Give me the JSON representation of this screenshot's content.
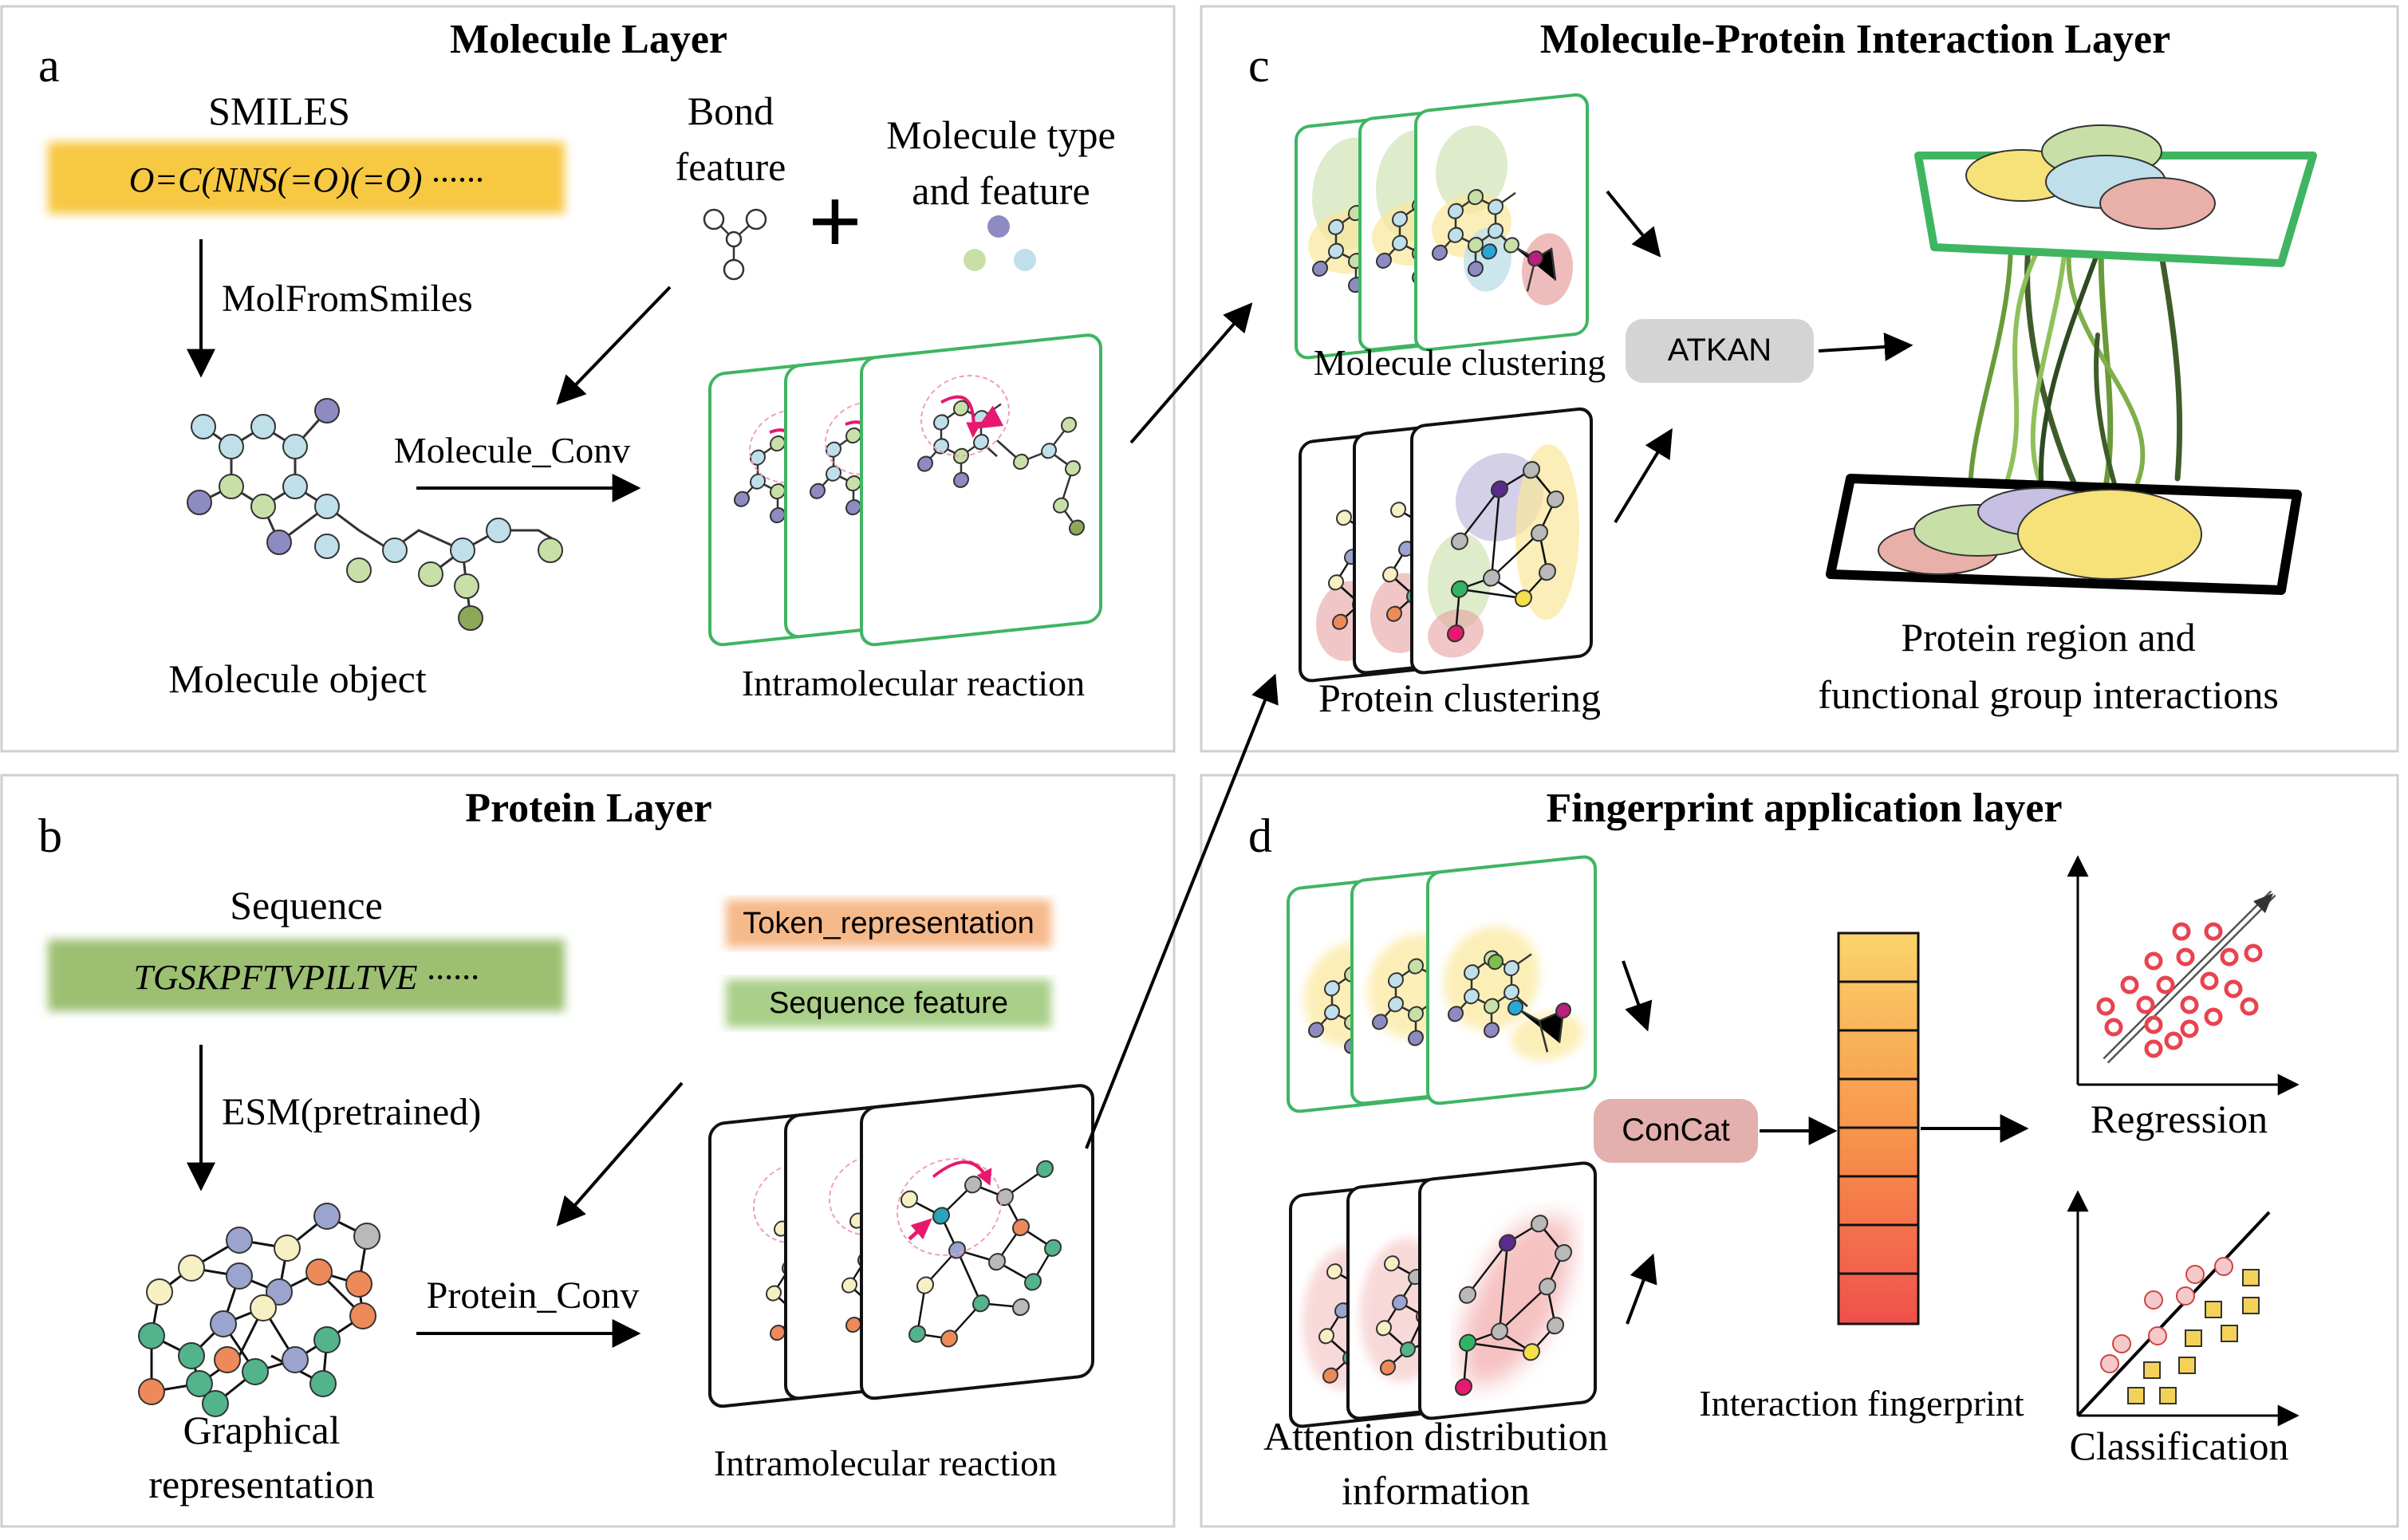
{
  "panels": {
    "a": {
      "letter": "a",
      "title": "Molecule Layer",
      "smiles_label": "SMILES",
      "smiles_value": "O=C(NNS(=O)(=O) ······",
      "molfromsmiles": "MolFromSmiles",
      "bond_feature_1": "Bond",
      "bond_feature_2": "feature",
      "plus": "+",
      "mol_type_1": "Molecule type",
      "mol_type_2": "and feature",
      "conv": "Molecule_Conv",
      "object": "Molecule object",
      "intramolecular": "Intramolecular reaction"
    },
    "b": {
      "letter": "b",
      "title": "Protein Layer",
      "sequence_label": "Sequence",
      "sequence_value": "TGSKPFTVPILTVE ······",
      "token": "Token_representation",
      "seq_feature": "Sequence feature",
      "esm": "ESM(pretrained)",
      "conv": "Protein_Conv",
      "graph_1": "Graphical",
      "graph_2": "representation",
      "intramolecular": "Intramolecular reaction"
    },
    "c": {
      "letter": "c",
      "title": "Molecule-Protein Interaction Layer",
      "mol_cluster": "Molecule clustering",
      "atkan": "ATKAN",
      "prot_cluster": "Protein clustering",
      "region_1": "Protein region and",
      "region_2": "functional group interactions"
    },
    "d": {
      "letter": "d",
      "title": "Fingerprint application layer",
      "concat": "ConCat",
      "fingerprint": "Interaction fingerprint",
      "attn_1": "Attention distribution",
      "attn_2": "information",
      "regression": "Regression",
      "classification": "Classification"
    }
  },
  "colors": {
    "smiles_box": "#f7c843",
    "sequence_box": "#9cbf72",
    "token_box": "#f6b98a",
    "seqfeat_box": "#a9cf88",
    "mol_frame": "#3fb562",
    "atkan_box": "#d4d4d4",
    "concat_box": "#e3b0ad",
    "red_marker": "#e8434e",
    "square_marker": "#f3d257"
  }
}
